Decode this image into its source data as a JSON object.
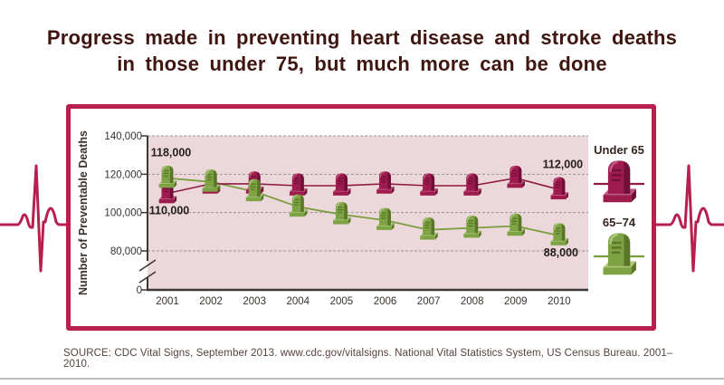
{
  "page": {
    "title": "Progress made in preventing heart disease and stroke deaths in those under 75, but much more can be done",
    "source": "SOURCE: CDC Vital Signs, September 2013. www.cdc.gov/vitalsigns. National Vital Statistics System, US Census Bureau. 2001–2010."
  },
  "colors": {
    "crimson": "#b7204e",
    "panel_pink": "#ecd8da",
    "maroon": "#9e1c4d",
    "maroon_dark": "#701038",
    "maroon_light": "#c25682",
    "maroon_line": "#8e1b44",
    "green": "#7ea344",
    "green_dark": "#5a7629",
    "green_light": "#abc579",
    "green_line": "#7a9d3e",
    "axis": "#3b3633",
    "grid": "#969696",
    "tick_text": "#38332f",
    "label_text": "#26201d",
    "legend_text": "#33241c"
  },
  "chart_data": {
    "type": "line",
    "title": "",
    "xlabel": "",
    "ylabel": "Number of Preventable Deaths",
    "categories": [
      "2001",
      "2002",
      "2003",
      "2004",
      "2005",
      "2006",
      "2007",
      "2008",
      "2009",
      "2010"
    ],
    "yticks": [
      {
        "label": "140,000",
        "value": 140000
      },
      {
        "label": "120,000",
        "value": 120000
      },
      {
        "label": "100,000",
        "value": 100000
      },
      {
        "label": "80,000",
        "value": 80000
      },
      {
        "label": "0",
        "value": 0
      }
    ],
    "ylim": [
      80000,
      140000
    ],
    "axis_break": true,
    "grid": "dashed-horizontal",
    "legend_position": "right",
    "marker": "tombstone",
    "series": [
      {
        "name": "Under 65",
        "color_key": "maroon",
        "values": [
          110000,
          115000,
          115000,
          114000,
          114000,
          115000,
          114000,
          114000,
          118000,
          112000
        ]
      },
      {
        "name": "65–74",
        "color_key": "green",
        "values": [
          118000,
          116000,
          111000,
          103000,
          99000,
          96000,
          91000,
          92000,
          93000,
          88000
        ]
      }
    ],
    "point_labels": [
      {
        "text": "118,000",
        "series": 1,
        "index": 0,
        "pos": "above"
      },
      {
        "text": "110,000",
        "series": 0,
        "index": 0,
        "pos": "below"
      },
      {
        "text": "112,000",
        "series": 0,
        "index": 9,
        "pos": "above"
      },
      {
        "text": "88,000",
        "series": 1,
        "index": 9,
        "pos": "below"
      }
    ]
  }
}
